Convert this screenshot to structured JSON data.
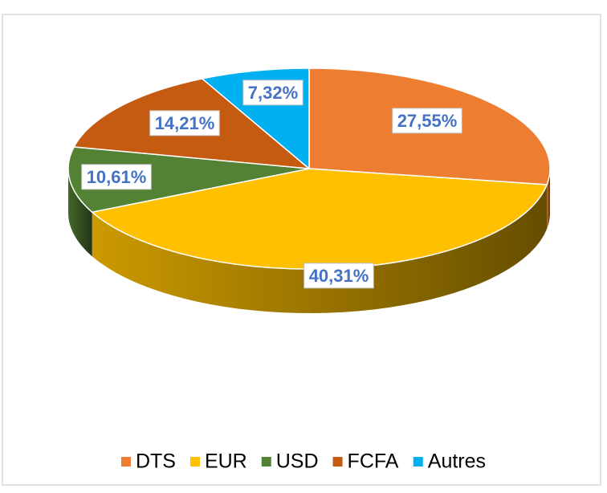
{
  "chart_data": {
    "type": "pie3d",
    "categories": [
      "DTS",
      "EUR",
      "USD",
      "FCFA",
      "Autres"
    ],
    "values": [
      27.55,
      40.31,
      10.61,
      14.21,
      7.32
    ],
    "value_labels": [
      "27,55%",
      "40,31%",
      "10,61%",
      "14,21%",
      "7,32%"
    ],
    "colors": [
      "#ed7d31",
      "#ffc000",
      "#548235",
      "#c55a11",
      "#00b0f0"
    ],
    "legend": "bottom"
  }
}
